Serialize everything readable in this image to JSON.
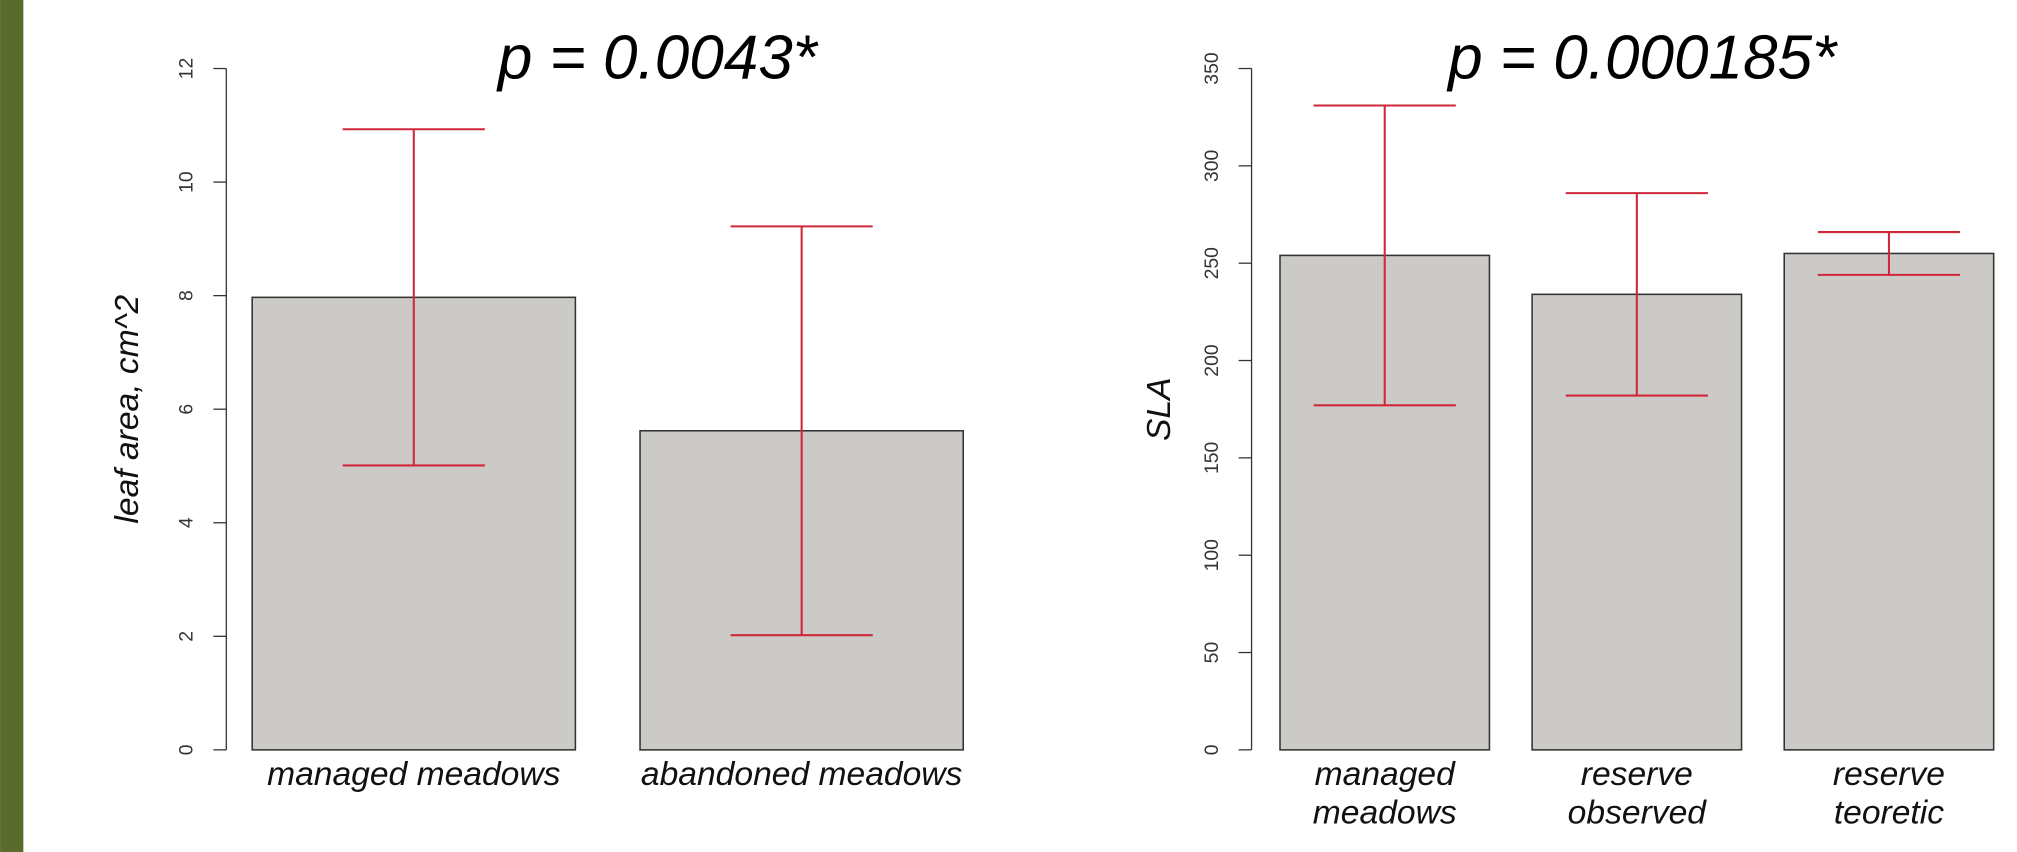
{
  "chart_data": [
    {
      "type": "bar",
      "annotation": "p = 0.0043*",
      "y_label": "leaf area, cm^2",
      "categories": [
        "managed meadows",
        "abandoned meadows"
      ],
      "values": [
        7.97,
        5.62
      ],
      "errors": [
        2.96,
        3.6
      ],
      "color": "#cbcac7",
      "error_color": "#d0273a",
      "ylim": [
        0,
        12
      ],
      "yticks": [
        0,
        2,
        4,
        6,
        8,
        10,
        12
      ]
    },
    {
      "type": "bar",
      "annotation": "p = 0.000185*",
      "y_label": "SLA",
      "categories": [
        "managed\nmeadows",
        "reserve\nobserved",
        "reserve\nteoretic"
      ],
      "values": [
        254,
        234,
        255
      ],
      "errors": [
        77,
        52,
        11
      ],
      "color": "#cbcac7",
      "error_color": "#d0273a",
      "ylim": [
        0,
        350
      ],
      "yticks": [
        0,
        50,
        100,
        150,
        200,
        250,
        300,
        350
      ]
    }
  ]
}
